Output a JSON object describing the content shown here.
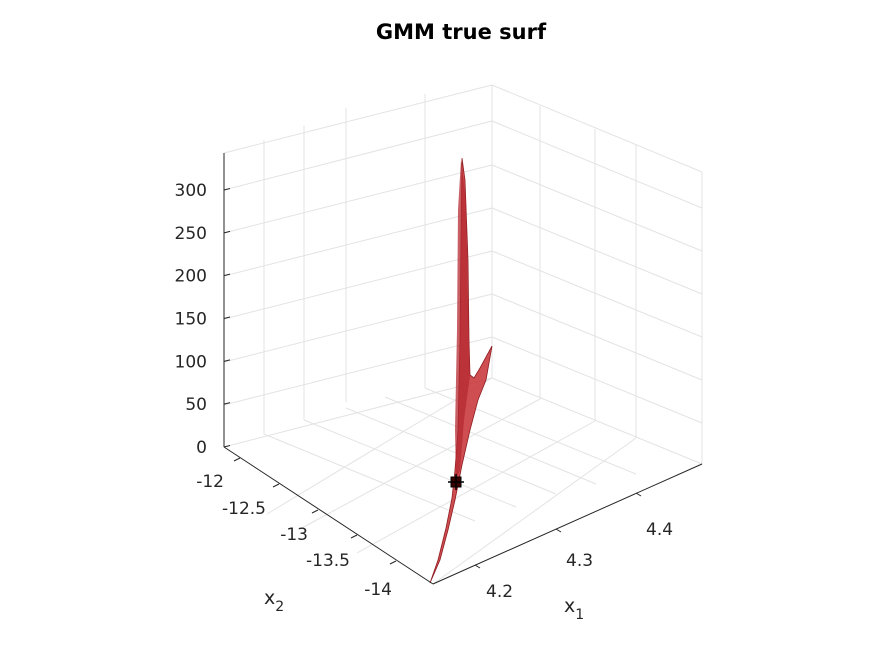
{
  "chart_data": {
    "type": "surface",
    "title": "GMM true surf",
    "x_axis": {
      "label": "x",
      "label_subscript": "1",
      "ticks": [
        4.2,
        4.3,
        4.4
      ],
      "tick_labels": [
        "4.2",
        "4.3",
        "4.4"
      ],
      "range": [
        4.15,
        4.45
      ]
    },
    "y_axis": {
      "label": "x",
      "label_subscript": "2",
      "ticks": [
        -12,
        -12.5,
        -13,
        -13.5,
        -14
      ],
      "tick_labels": [
        "-12",
        "-12.5",
        "-13",
        "-13.5",
        "-14"
      ],
      "range": [
        -14.2,
        -11.8
      ]
    },
    "z_axis": {
      "label": "",
      "ticks": [
        0,
        50,
        100,
        150,
        200,
        250,
        300
      ],
      "tick_labels": [
        "0",
        "50",
        "100",
        "150",
        "200",
        "250",
        "300"
      ],
      "range": [
        0,
        340
      ]
    },
    "grid": true,
    "surface_color": "#c8353a",
    "surface_edge_color": "#8e1d22",
    "marker_color": "#3a0000",
    "marker": {
      "x1": 4.255,
      "x2": -13.2,
      "z": 0
    }
  }
}
